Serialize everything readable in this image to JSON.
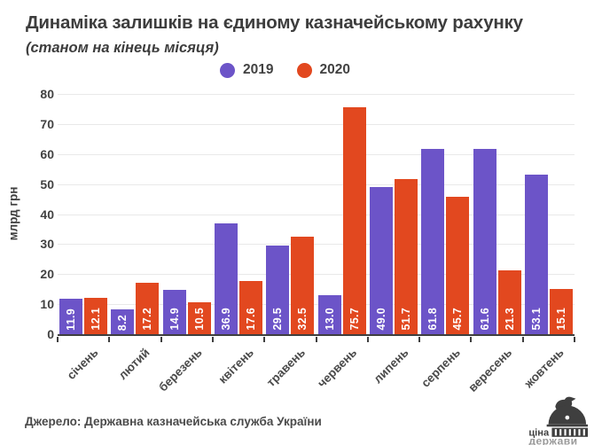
{
  "title": "Динаміка залишків на єдиному казначейському рахунку",
  "subtitle": "(станом на кінець місяця)",
  "source": "Джерело: Державна казначейська служба України",
  "logo": {
    "line1": "ціна",
    "line2": "держави"
  },
  "chart_data": {
    "type": "bar",
    "categories": [
      "січень",
      "лютий",
      "березень",
      "квітень",
      "травень",
      "червень",
      "липень",
      "серпень",
      "вересень",
      "жовтень"
    ],
    "series": [
      {
        "name": "2019",
        "color": "#6c54c8",
        "values": [
          11.9,
          8.2,
          14.9,
          36.9,
          29.5,
          13.0,
          49.0,
          61.8,
          61.6,
          53.1
        ]
      },
      {
        "name": "2020",
        "color": "#e2481f",
        "values": [
          12.1,
          17.2,
          10.5,
          17.6,
          32.5,
          75.7,
          51.7,
          45.7,
          21.3,
          15.1
        ]
      }
    ],
    "xlabel": "",
    "ylabel": "млрд грн",
    "ylim": [
      0,
      80
    ],
    "yticks": [
      0,
      10,
      20,
      30,
      40,
      50,
      60,
      70,
      80
    ],
    "grid": true,
    "legend_position": "top",
    "value_label_decimals": 1,
    "value_label_color": "#ffffff",
    "axis_color": "#3f3f3f",
    "gridline_color": "#e9e9e9"
  }
}
